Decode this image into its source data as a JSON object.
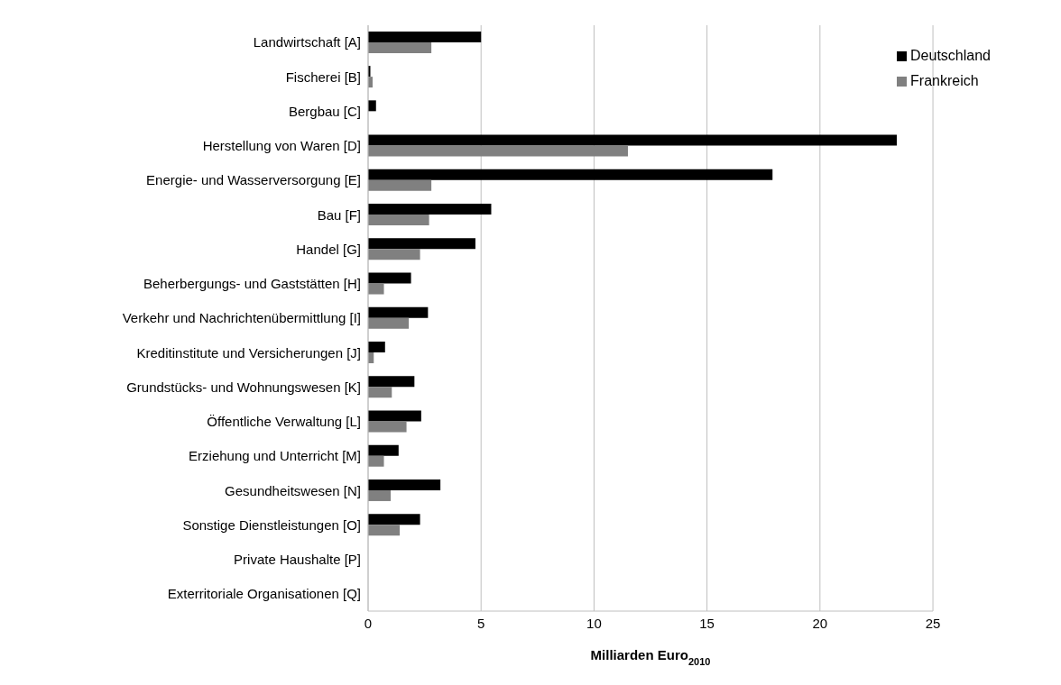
{
  "chart_data": {
    "type": "bar",
    "orientation": "horizontal",
    "xlabel": "Milliarden Euro$_{2010}$",
    "categories": [
      "Landwirtschaft [A]",
      "Fischerei [B]",
      "Bergbau [C]",
      "Herstellung von Waren [D]",
      "Energie- und Wasserversorgung [E]",
      "Bau [F]",
      "Handel [G]",
      "Beherbergungs- und Gaststätten [H]",
      "Verkehr und Nachrichtenübermittlung [I]",
      "Kreditinstitute und Versicherungen [J]",
      "Grundstücks- und Wohnungswesen [K]",
      "Öffentliche Verwaltung [L]",
      "Erziehung und Unterricht [M]",
      "Gesundheitswesen [N]",
      "Sonstige Dienstleistungen [O]",
      "Private Haushalte [P]",
      "Exterritoriale Organisationen [Q]"
    ],
    "series": [
      {
        "name": "Deutschland",
        "color": "#000000",
        "values": [
          5.0,
          0.1,
          0.35,
          23.4,
          17.9,
          5.45,
          4.75,
          1.9,
          2.65,
          0.75,
          2.05,
          2.35,
          1.35,
          3.2,
          2.3,
          null,
          0
        ]
      },
      {
        "name": "Frankreich",
        "color": "#808080",
        "values": [
          2.8,
          0.2,
          null,
          11.5,
          2.8,
          2.7,
          2.3,
          0.7,
          1.8,
          0.25,
          1.05,
          1.7,
          0.7,
          1.0,
          1.4,
          null,
          0
        ]
      }
    ],
    "xlim": [
      0,
      25
    ],
    "xticks": [
      0,
      5,
      10,
      15,
      20,
      25
    ],
    "grid": "x",
    "legend": "top right"
  }
}
